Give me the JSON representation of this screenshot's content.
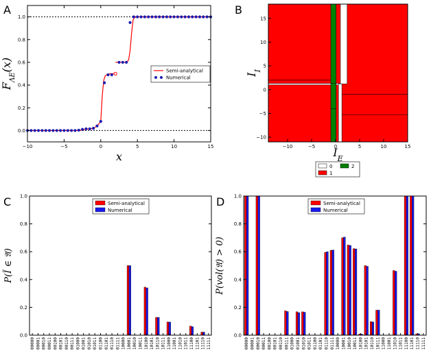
{
  "panels": {
    "A": {
      "letter": "A"
    },
    "B": {
      "letter": "B"
    },
    "C": {
      "letter": "C"
    },
    "D": {
      "letter": "D"
    }
  },
  "chart_data": [
    {
      "id": "A",
      "type": "line",
      "xlabel": "x",
      "ylabel": "F_{Λ_E}(x)",
      "xlim": [
        -10,
        15
      ],
      "ylim": [
        -0.1,
        1.1
      ],
      "xticks": [
        -10,
        -5,
        0,
        5,
        10,
        15
      ],
      "yticks": [
        0.0,
        0.2,
        0.4,
        0.6,
        0.8,
        1.0
      ],
      "xtick_labels": [
        "−10",
        "−5",
        "0",
        "5",
        "10",
        "15"
      ],
      "ytick_labels": [
        "0.0",
        "0.2",
        "0.4",
        "0.6",
        "0.8",
        "1.0"
      ],
      "hlines": [
        0,
        1
      ],
      "legend": "center-right",
      "colors": {
        "semi": "#ff0000",
        "numerical": "#1b1bb0"
      },
      "series": [
        {
          "name": "Semi-analytical",
          "style": "line",
          "x": [
            -10,
            -3,
            -2,
            -1,
            -0.5,
            0,
            0.2,
            0.4,
            0.6,
            0.8,
            1.0,
            1.3,
            1.6,
            2.0
          ],
          "y": [
            0.0,
            0.0,
            0.01,
            0.02,
            0.04,
            0.08,
            0.3,
            0.44,
            0.48,
            0.49,
            0.495,
            0.5,
            0.5,
            0.5
          ]
        },
        {
          "name": "Semi-analytical",
          "style": "line",
          "x": [
            2.0,
            3.0,
            3.5,
            3.8,
            4.0,
            4.2,
            4.4,
            4.6,
            5.0,
            15
          ],
          "y": [
            0.6,
            0.6,
            0.6,
            0.62,
            0.7,
            0.85,
            0.97,
            0.995,
            1.0,
            1.0
          ]
        },
        {
          "name": "Numerical",
          "style": "points",
          "x": [
            -10,
            -9.5,
            -9,
            -8.5,
            -8,
            -7.5,
            -7,
            -6.5,
            -6,
            -5.5,
            -5,
            -4.5,
            -4,
            -3.5,
            -3,
            -2.5,
            -2,
            -1.5,
            -1,
            -0.5,
            0,
            0.5,
            1.0,
            1.5,
            2.5,
            3.0,
            3.5,
            4.0,
            4.5,
            5.0,
            5.5,
            6.0,
            6.5,
            7.0,
            7.5,
            8.0,
            8.5,
            9.0,
            9.5,
            10.0,
            10.5,
            11.0,
            11.5,
            12.0,
            12.5,
            13.0,
            13.5,
            14.0,
            14.5,
            15.0
          ],
          "y": [
            0,
            0,
            0,
            0,
            0,
            0,
            0,
            0,
            0,
            0,
            0,
            0,
            0,
            0,
            0.003,
            0.01,
            0.015,
            0.015,
            0.02,
            0.04,
            0.08,
            0.42,
            0.49,
            0.49,
            0.6,
            0.6,
            0.6,
            0.95,
            1.0,
            1.0,
            1.0,
            1.0,
            1.0,
            1.0,
            1.0,
            1.0,
            1.0,
            1.0,
            1.0,
            1.0,
            1.0,
            1.0,
            1.0,
            1.0,
            1.0,
            1.0,
            1.0,
            1.0,
            1.0,
            1.0
          ]
        },
        {
          "name": "open",
          "style": "open-points",
          "x": [
            2.0
          ],
          "y": [
            0.5
          ]
        }
      ]
    },
    {
      "id": "B",
      "type": "heatmap",
      "xlabel": "I_E",
      "ylabel": "I_I",
      "xlim": [
        -14,
        15
      ],
      "ylim": [
        -11,
        18
      ],
      "xticks": [
        -10,
        -5,
        0,
        5,
        10,
        15
      ],
      "yticks": [
        -10,
        -5,
        0,
        5,
        10,
        15
      ],
      "xtick_labels": [
        "−10",
        "−5",
        "0",
        "5",
        "10",
        "15"
      ],
      "ytick_labels": [
        "−10",
        "−5",
        "0",
        "5",
        "10",
        "15"
      ],
      "colors": {
        "0": "#ffffff",
        "1": "#ff0000",
        "2": "#008000"
      },
      "legend_entries": [
        "0",
        "1",
        "2"
      ],
      "legend": "bottom",
      "regions": [
        {
          "x0": -14,
          "x1": 15,
          "y0": -11,
          "y1": 18,
          "v": "1"
        },
        {
          "x0": 1.0,
          "x1": 2.4,
          "y0": 1.2,
          "y1": 18,
          "v": "0"
        },
        {
          "x0": -14,
          "x1": 1.0,
          "y0": 1.0,
          "y1": 1.3,
          "v": "0"
        },
        {
          "x0": 0.6,
          "x1": 1.3,
          "y0": -11,
          "y1": 1.2,
          "v": "0"
        },
        {
          "x0": -1.0,
          "x1": 0.1,
          "y0": -11,
          "y1": 18,
          "v": "2"
        }
      ],
      "borders": [
        {
          "x0": -14,
          "x1": -1.0,
          "y": 2.0
        },
        {
          "x0": 1.3,
          "x1": 15,
          "y": -1.0
        },
        {
          "x0": 1.3,
          "x1": 15,
          "y": -5.3
        },
        {
          "x0": -1.0,
          "x1": 0.1,
          "y": 1.3
        },
        {
          "x0": -1.0,
          "x1": 0.1,
          "y": -4.0
        },
        {
          "x0": 0.1,
          "x1": 0.6,
          "y": 1.3
        }
      ]
    },
    {
      "id": "C",
      "type": "bar",
      "ylabel": "P(Ĩ ∈ 𝔄)",
      "ylim": [
        0,
        1.0
      ],
      "yticks": [
        0.0,
        0.2,
        0.4,
        0.6,
        0.8,
        1.0
      ],
      "ytick_labels": [
        "0.0",
        "0.2",
        "0.4",
        "0.6",
        "0.8",
        "1.0"
      ],
      "legend": "top-center",
      "categories": [
        "00000",
        "00001",
        "00010",
        "00011",
        "00100",
        "00101",
        "00110",
        "00111",
        "01000",
        "01001",
        "01010",
        "01011",
        "01100",
        "01101",
        "01110",
        "01111",
        "10000",
        "10001",
        "10010",
        "10011",
        "10100",
        "10101",
        "10110",
        "10111",
        "11000",
        "11001",
        "11010",
        "11011",
        "11100",
        "11101",
        "11110",
        "11111"
      ],
      "series": [
        {
          "name": "Semi-analytical",
          "color": "#ff0000",
          "values": [
            0,
            0,
            0,
            0,
            0,
            0,
            0,
            0,
            0,
            0,
            0,
            0,
            0,
            0,
            0,
            0,
            0,
            0.5,
            0,
            0,
            0.345,
            0,
            0.128,
            0,
            0.095,
            0,
            0,
            0,
            0.065,
            0,
            0.022,
            0
          ]
        },
        {
          "name": "Numerical",
          "color": "#1a1aee",
          "values": [
            0,
            0,
            0,
            0,
            0,
            0,
            0,
            0,
            0,
            0,
            0,
            0,
            0,
            0,
            0,
            0,
            0,
            0.5,
            0,
            0,
            0.34,
            0,
            0.128,
            0,
            0.094,
            0,
            0,
            0,
            0.061,
            0,
            0.022,
            0
          ]
        }
      ]
    },
    {
      "id": "D",
      "type": "bar",
      "ylabel": "P(vol(𝔄) > 0)",
      "ylim": [
        0,
        1.0
      ],
      "yticks": [
        0.0,
        0.2,
        0.4,
        0.6,
        0.8,
        1.0
      ],
      "ytick_labels": [
        "0.0",
        "0.2",
        "0.4",
        "0.6",
        "0.8",
        "1.0"
      ],
      "legend": "top-left",
      "categories": [
        "00000",
        "00001",
        "00010",
        "00011",
        "00100",
        "00101",
        "00110",
        "00111",
        "01000",
        "01001",
        "01010",
        "01011",
        "01100",
        "01101",
        "01110",
        "01111",
        "10000",
        "10001",
        "10010",
        "10011",
        "10100",
        "10101",
        "10110",
        "10111",
        "11000",
        "11001",
        "11010",
        "11011",
        "11100",
        "11101",
        "11110",
        "11111"
      ],
      "series": [
        {
          "name": "Semi-analytical",
          "color": "#ff0000",
          "values": [
            1.0,
            0,
            1.0,
            0,
            0,
            0,
            0,
            0.175,
            0,
            0.168,
            0.168,
            0,
            0,
            0,
            0.595,
            0.61,
            0,
            0.7,
            0.648,
            0.622,
            0.008,
            0.5,
            0.097,
            0.18,
            0,
            0,
            0.465,
            0,
            1.0,
            1.0,
            0.01,
            0
          ]
        },
        {
          "name": "Numerical",
          "color": "#1a1aee",
          "values": [
            1.0,
            0,
            1.0,
            0,
            0,
            0,
            0,
            0.17,
            0,
            0.162,
            0.165,
            0,
            0,
            0,
            0.6,
            0.612,
            0,
            0.705,
            0.645,
            0.62,
            0.008,
            0.495,
            0.095,
            0.18,
            0,
            0,
            0.46,
            0,
            1.0,
            1.0,
            0.01,
            0
          ]
        }
      ]
    }
  ]
}
